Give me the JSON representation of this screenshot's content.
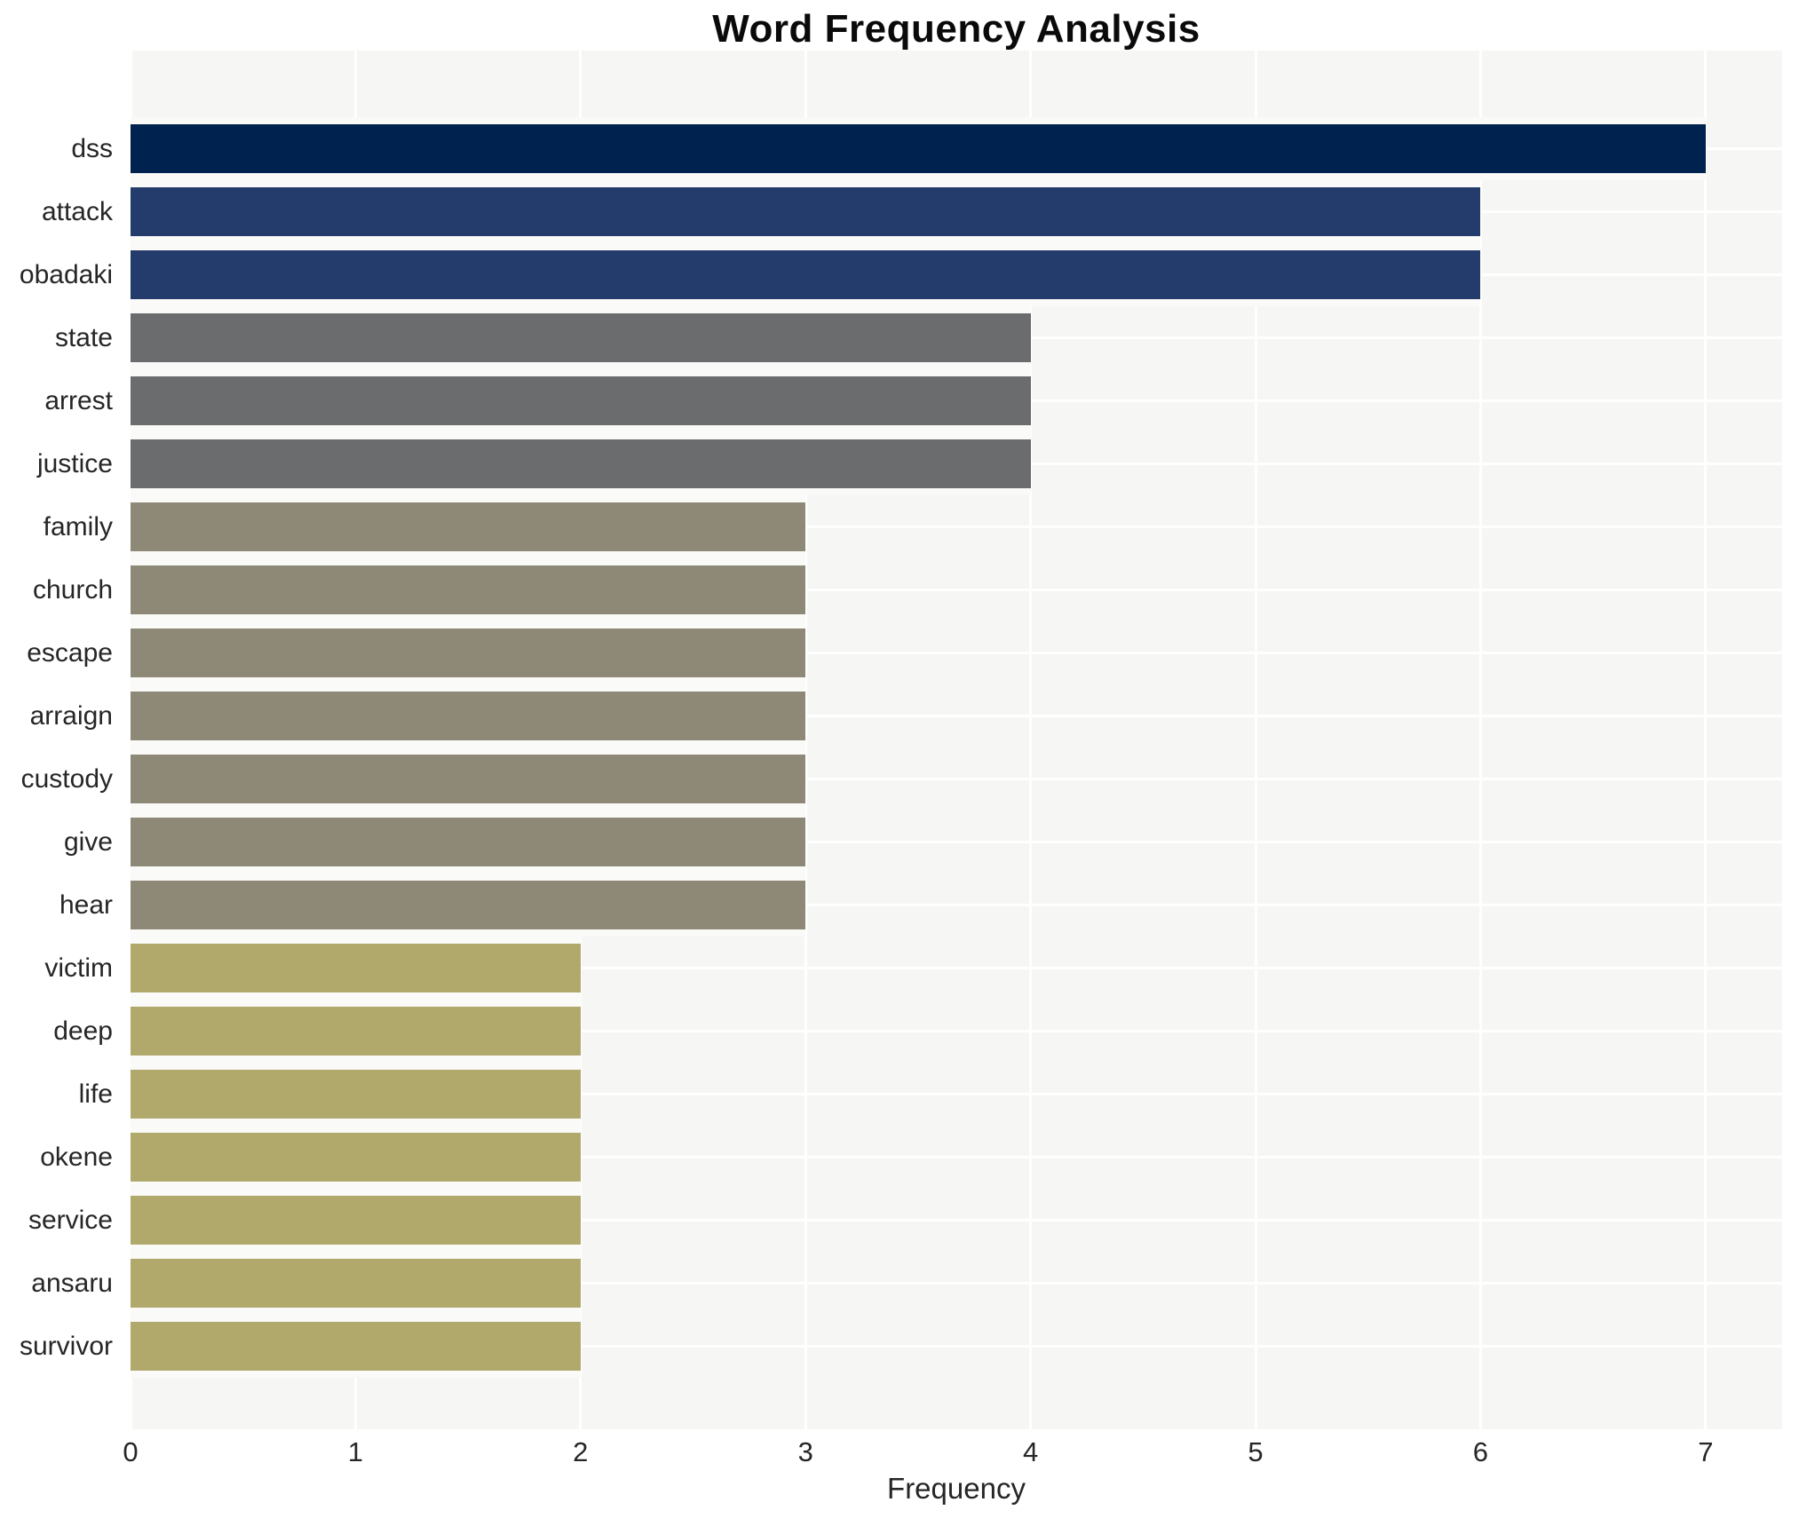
{
  "chart_data": {
    "type": "bar",
    "orientation": "horizontal",
    "title": "Word Frequency Analysis",
    "xlabel": "Frequency",
    "ylabel": "",
    "xlim": [
      0,
      7.34
    ],
    "x_ticks": [
      0,
      1,
      2,
      3,
      4,
      5,
      6,
      7
    ],
    "grid": true,
    "legend": "none",
    "categories": [
      "dss",
      "attack",
      "obadaki",
      "state",
      "arrest",
      "justice",
      "family",
      "church",
      "escape",
      "arraign",
      "custody",
      "give",
      "hear",
      "victim",
      "deep",
      "life",
      "okene",
      "service",
      "ansaru",
      "survivor"
    ],
    "values": [
      7,
      6,
      6,
      4,
      4,
      4,
      3,
      3,
      3,
      3,
      3,
      3,
      3,
      2,
      2,
      2,
      2,
      2,
      2,
      2
    ],
    "bar_colors": [
      "#00224e",
      "#243c6b",
      "#243c6b",
      "#6b6c6e",
      "#6b6c6e",
      "#6b6c6e",
      "#8e8977",
      "#8e8977",
      "#8e8977",
      "#8e8977",
      "#8e8977",
      "#8e8977",
      "#8e8977",
      "#b1a86c",
      "#b1a86c",
      "#b1a86c",
      "#b1a86c",
      "#b1a86c",
      "#b1a86c",
      "#b1a86c"
    ],
    "value_color_map": {
      "7": "#00224e",
      "6": "#243c6b",
      "4": "#6b6c6e",
      "3": "#8e8977",
      "2": "#b1a86c"
    }
  },
  "colors": {
    "plot_background": "#f6f6f4",
    "gridline": "#ffffff",
    "page_background": "#ffffff",
    "text": "#262626",
    "title_text": "#0a0a0a"
  }
}
